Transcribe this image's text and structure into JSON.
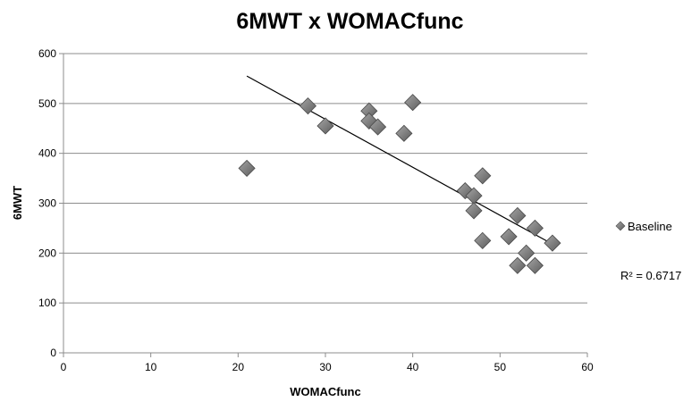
{
  "chart_data": {
    "type": "scatter",
    "title": "6MWT x WOMACfunc",
    "xlabel": "WOMACfunc",
    "ylabel": "6MWT",
    "xlim": [
      0,
      60
    ],
    "ylim": [
      0,
      600
    ],
    "x_ticks": [
      0,
      10,
      20,
      30,
      40,
      50,
      60
    ],
    "y_ticks": [
      0,
      100,
      200,
      300,
      400,
      500,
      600
    ],
    "grid": "horizontal",
    "legend_position": "right",
    "series": [
      {
        "name": "Baseline",
        "marker": "diamond",
        "color": "#777777",
        "points": [
          [
            21,
            370
          ],
          [
            28,
            495
          ],
          [
            30,
            455
          ],
          [
            35,
            485
          ],
          [
            35,
            465
          ],
          [
            36,
            453
          ],
          [
            39,
            440
          ],
          [
            40,
            502
          ],
          [
            46,
            325
          ],
          [
            47,
            315
          ],
          [
            47,
            285
          ],
          [
            48,
            355
          ],
          [
            48,
            225
          ],
          [
            51,
            233
          ],
          [
            52,
            275
          ],
          [
            52,
            175
          ],
          [
            53,
            200
          ],
          [
            54,
            250
          ],
          [
            54,
            175
          ],
          [
            56,
            220
          ]
        ]
      }
    ],
    "trendline": {
      "type": "linear",
      "x_range": [
        21,
        56
      ],
      "y_values": [
        555,
        218
      ],
      "color": "#000000"
    },
    "r_squared_label": "R² = 0.6717"
  }
}
